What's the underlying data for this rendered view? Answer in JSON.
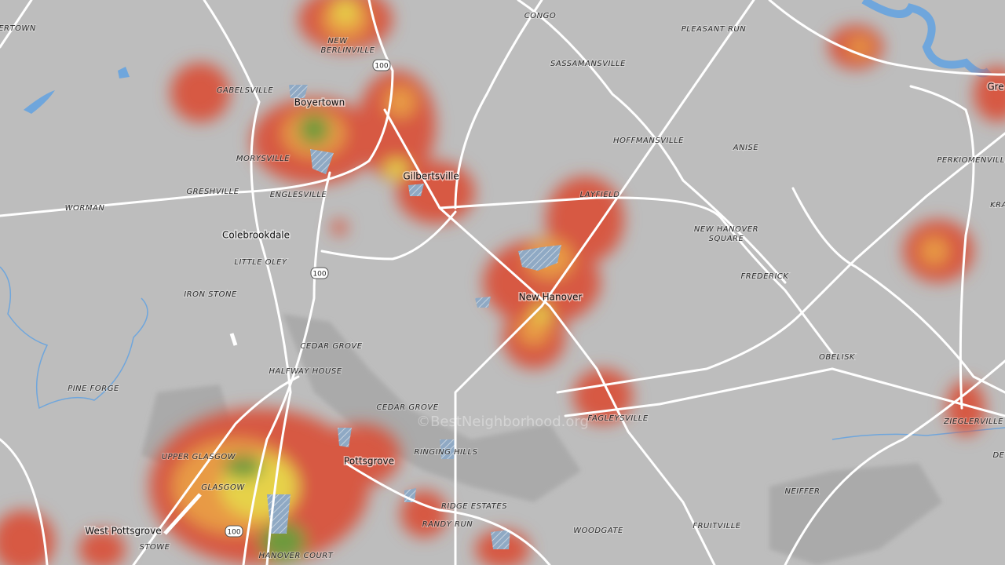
{
  "map": {
    "places": [
      "ERTOWN",
      "CONGO",
      "PLEASANT RUN",
      "NEW",
      "BERLINVILLE",
      "SASSAMANSVILLE",
      "GABELSVILLE",
      "HOFFMANSVILLE",
      "ANISE",
      "MORYSVILLE",
      "PERKIOMENVILLE",
      "GRESHVILLE",
      "ENGLESVILLE",
      "LAYFIELD",
      "KRA",
      "WORMAN",
      "NEW HANOVER",
      "SQUARE",
      "LITTLE OLEY",
      "FREDERICK",
      "IRON STONE",
      "CEDAR GROVE",
      "OBELISK",
      "HALFWAY HOUSE",
      "PINE FORGE",
      "CEDAR GROVE",
      "FAGLEYSVILLE",
      "ZIEGLERVILLE",
      "RINGING HILLS",
      "DE",
      "UPPER GLASGOW",
      "GLASGOW",
      "NEIFFER",
      "RIDGE ESTATES",
      "RANDY RUN",
      "FRUITVILLE",
      "WOODGATE",
      "STOWE",
      "HANOVER COURT"
    ],
    "towns": [
      "Boyertown",
      "Gilbertsville",
      "Colebrookdale",
      "New Hanover",
      "Pottsgrove",
      "West Pottsgrove",
      "Gre"
    ],
    "routes": [
      "100",
      "100",
      "100"
    ],
    "watermark": "©BestNeighborhood.org"
  }
}
